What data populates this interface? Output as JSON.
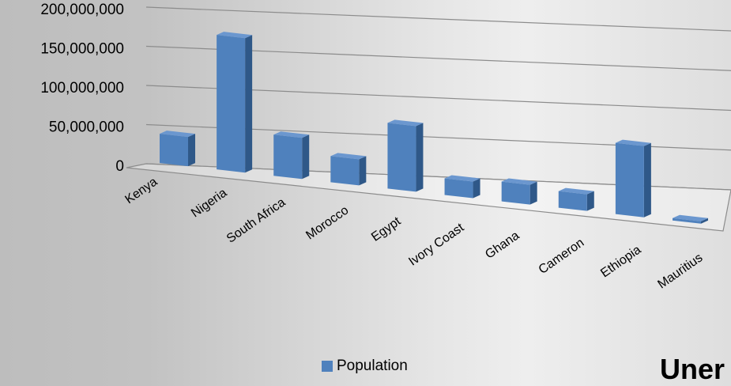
{
  "chart_data": {
    "type": "bar",
    "categories": [
      "Kenya",
      "Nigeria",
      "South Africa",
      "Morocco",
      "Egypt",
      "Ivory Coast",
      "Ghana",
      "Cameron",
      "Ethiopia",
      "Mauritius"
    ],
    "series": [
      {
        "name": "Population",
        "color": "#4f81bd",
        "values": [
          37000000,
          170000000,
          52000000,
          33000000,
          83000000,
          21000000,
          25000000,
          21000000,
          90000000,
          1300000
        ]
      }
    ],
    "ylim": [
      0,
      200000000
    ],
    "yticks": [
      "200,000,000",
      "150,000,000",
      "100,000,000",
      "50,000,000",
      "0"
    ],
    "grid": true,
    "legend_position": "bottom",
    "projection": "3d-perspective"
  },
  "overlay_text": "Uner"
}
